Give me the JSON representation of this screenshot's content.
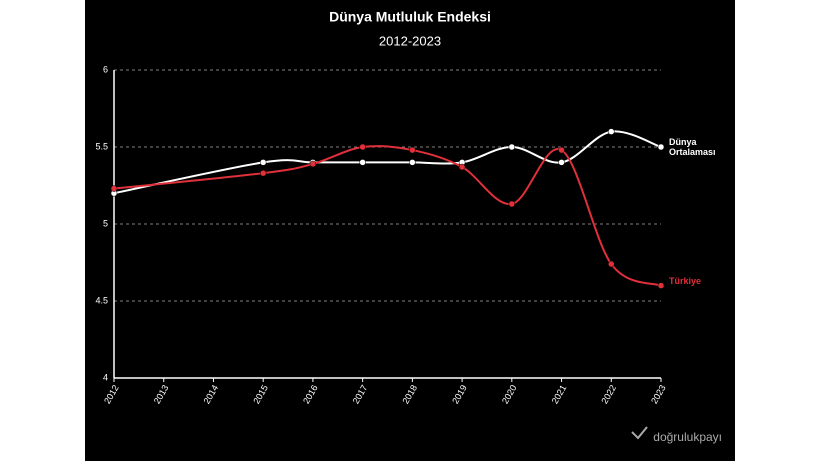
{
  "chart_data": {
    "type": "line",
    "title": "Dünya Mutluluk Endeksi",
    "subtitle": "2012-2023",
    "xlim": [
      2012,
      2023
    ],
    "xticks": [
      2012,
      2013,
      2014,
      2015,
      2016,
      2017,
      2018,
      2019,
      2020,
      2021,
      2022,
      2023
    ],
    "ylim": [
      4,
      6
    ],
    "yticks": [
      4,
      4.5,
      5,
      5.5,
      6
    ],
    "grid": true,
    "series": [
      {
        "name": "Dünya Ortalaması",
        "color": "#ffffff",
        "x": [
          2012,
          2015,
          2016,
          2017,
          2018,
          2019,
          2020,
          2021,
          2022,
          2023
        ],
        "values": [
          5.2,
          5.4,
          5.4,
          5.4,
          5.4,
          5.4,
          5.5,
          5.4,
          5.6,
          5.5
        ]
      },
      {
        "name": "Türkiye",
        "color": "#e0303a",
        "x": [
          2012,
          2015,
          2016,
          2017,
          2018,
          2019,
          2020,
          2021,
          2022,
          2023
        ],
        "values": [
          5.23,
          5.33,
          5.39,
          5.5,
          5.48,
          5.37,
          5.13,
          5.48,
          4.74,
          4.6
        ]
      }
    ]
  },
  "watermark": "doğrulukpayı"
}
